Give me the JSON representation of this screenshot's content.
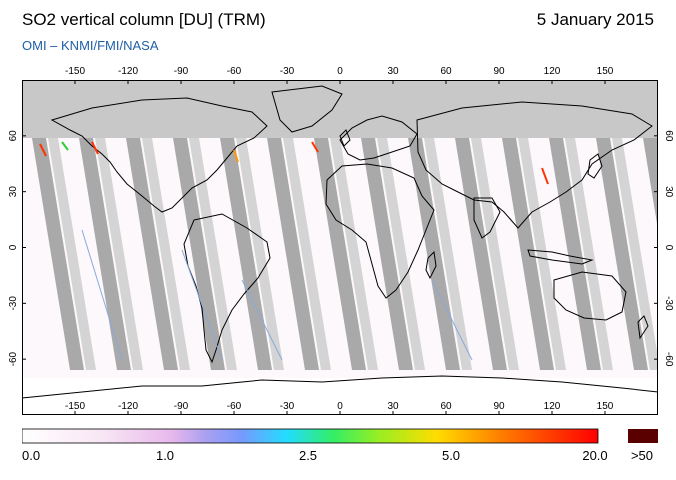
{
  "header": {
    "title": "SO2 vertical column [DU] (TRM)",
    "date": "5 January 2015",
    "source": "OMI  –  KNMI/FMI/NASA"
  },
  "map": {
    "longitude_ticks": [
      "-150",
      "-120",
      "-90",
      "-60",
      "-30",
      "0",
      "30",
      "60",
      "90",
      "120",
      "150"
    ],
    "latitude_ticks": [
      "60",
      "30",
      "0",
      "-30",
      "-60"
    ],
    "colors": {
      "ocean": "#ffffff",
      "no_data": "#c8c8c8",
      "swath_gap": "#a9a9a9",
      "coastline": "#000000",
      "high_so2": "#ff3300"
    }
  },
  "colorbar": {
    "labels": [
      "0.0",
      "1.0",
      "2.5",
      "5.0",
      "20.0"
    ],
    "overflow_label": ">50",
    "overflow_color": "#5a0000"
  }
}
